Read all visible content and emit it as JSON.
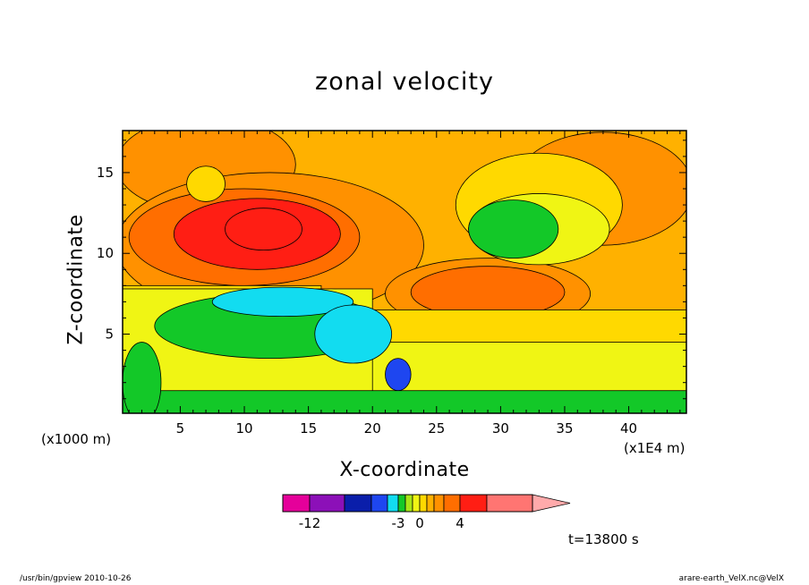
{
  "chart_data": {
    "type": "heatmap",
    "title": "zonal velocity",
    "xlabel": "X-coordinate",
    "ylabel": "Z-coordinate",
    "x_unit": "(x1000 m)",
    "x_scale": "(x1E4 m)",
    "xlim": [
      0.5,
      44.5
    ],
    "ylim": [
      0.1,
      17.6
    ],
    "x_ticks": [
      "5",
      "10",
      "15",
      "20",
      "25",
      "30",
      "35",
      "40"
    ],
    "y_ticks": [
      "5",
      "10",
      "15"
    ],
    "colorbar": {
      "levels": [
        -15,
        -12,
        -9,
        -6,
        -4,
        -3,
        -2,
        -1,
        0,
        1,
        2,
        3,
        4,
        6,
        9
      ],
      "colors": [
        "#e5009a",
        "#8c10b8",
        "#0a1eaa",
        "#1e46f0",
        "#12dcf0",
        "#13c828",
        "#a8e617",
        "#f0f514",
        "#ffd900",
        "#ffb100",
        "#ff9100",
        "#ff6e00",
        "#ff1e14",
        "#ff7572",
        "#ffaaab"
      ],
      "labels": [
        "-12",
        "-3",
        "0",
        "4"
      ]
    },
    "time_label": "t=13800 s",
    "regions": [
      {
        "type": "rect",
        "x0": 0.5,
        "x1": 44.5,
        "y0": 0.1,
        "y1": 17.6,
        "level": 1
      },
      {
        "type": "ellipse",
        "cx": 38,
        "cy": 14,
        "rx": 7,
        "ry": 3.5,
        "level": 2
      },
      {
        "type": "ellipse",
        "cx": 7,
        "cy": 15.5,
        "rx": 7,
        "ry": 3,
        "level": 2
      },
      {
        "type": "ellipse",
        "cx": 12,
        "cy": 10.5,
        "rx": 12,
        "ry": 4.5,
        "level": 2
      },
      {
        "type": "ellipse",
        "cx": 29,
        "cy": 7.5,
        "rx": 8,
        "ry": 2.2,
        "level": 2
      },
      {
        "type": "ellipse",
        "cx": 10,
        "cy": 11,
        "rx": 9,
        "ry": 3,
        "level": 3
      },
      {
        "type": "ellipse",
        "cx": 29,
        "cy": 7.6,
        "rx": 6,
        "ry": 1.6,
        "level": 3
      },
      {
        "type": "ellipse",
        "cx": 11,
        "cy": 11.2,
        "rx": 6.5,
        "ry": 2.2,
        "level": 4
      },
      {
        "type": "ellipse",
        "cx": 11.5,
        "cy": 11.5,
        "rx": 3,
        "ry": 1.3,
        "level": 5
      },
      {
        "type": "ellipse",
        "cx": 33,
        "cy": 13,
        "rx": 6.5,
        "ry": 3.2,
        "level": 0
      },
      {
        "type": "ellipse",
        "cx": 33,
        "cy": 11.5,
        "rx": 5.5,
        "ry": 2.2,
        "level": -1
      },
      {
        "type": "ellipse",
        "cx": 31,
        "cy": 11.5,
        "rx": 3.5,
        "ry": 1.8,
        "level": -3
      },
      {
        "type": "ellipse",
        "cx": 7,
        "cy": 14.3,
        "rx": 1.5,
        "ry": 1.1,
        "level": 0
      },
      {
        "type": "rect",
        "x0": 0.5,
        "x1": 44.5,
        "y0": 0.1,
        "y1": 6.5,
        "level": 0
      },
      {
        "type": "rect",
        "x0": 0.5,
        "x1": 16,
        "y0": 0.1,
        "y1": 8,
        "level": 0
      },
      {
        "type": "rect",
        "x0": 0.5,
        "x1": 44.5,
        "y0": 0.1,
        "y1": 4.5,
        "level": -1
      },
      {
        "type": "rect",
        "x0": 0.5,
        "x1": 20,
        "y0": 0.1,
        "y1": 7.8,
        "level": -1
      },
      {
        "type": "ellipse",
        "cx": 12,
        "cy": 5.5,
        "rx": 9,
        "ry": 2,
        "level": -3
      },
      {
        "type": "ellipse",
        "cx": 13,
        "cy": 7,
        "rx": 5.5,
        "ry": 0.9,
        "level": -4
      },
      {
        "type": "ellipse",
        "cx": 18.5,
        "cy": 5,
        "rx": 3,
        "ry": 1.8,
        "level": -4
      },
      {
        "type": "ellipse",
        "cx": 22,
        "cy": 2.5,
        "rx": 1,
        "ry": 1,
        "level": -5
      },
      {
        "type": "rect",
        "x0": 0.5,
        "x1": 44.5,
        "y0": 0.1,
        "y1": 1.5,
        "level": -3
      },
      {
        "type": "ellipse",
        "cx": 2,
        "cy": 2,
        "rx": 1.5,
        "ry": 2.5,
        "level": -3
      }
    ]
  },
  "footer": {
    "left": "/usr/bin/gpview  2010-10-26",
    "right": "arare-earth_VelX.nc@VelX"
  }
}
